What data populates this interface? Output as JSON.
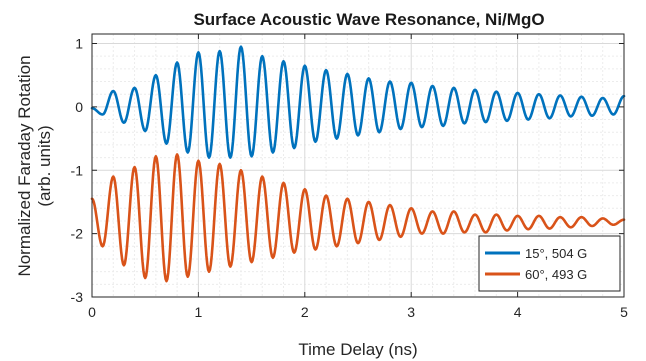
{
  "chart_data": {
    "type": "line",
    "title": "Surface Acoustic Wave Resonance, Ni/MgO",
    "xlabel": "Time Delay (ns)",
    "ylabel": [
      "Normalized Faraday Rotation",
      "(arb. units)"
    ],
    "xlim": [
      0,
      5
    ],
    "ylim": [
      -3,
      1.15
    ],
    "xticks": [
      "0",
      "1",
      "2",
      "3",
      "4",
      "5"
    ],
    "yticks": [
      "1",
      "0",
      "-1",
      "-2",
      "-3"
    ],
    "grid": true,
    "minor_grid": true,
    "legend_position": "bottom-right",
    "series": [
      {
        "name": "15°, 504 G",
        "color": "#0072BD",
        "offset": 0.0,
        "period_ns": 0.2,
        "points": [
          [
            0.0,
            -0.02
          ],
          [
            0.1,
            -0.12
          ],
          [
            0.2,
            0.25
          ],
          [
            0.3,
            -0.25
          ],
          [
            0.4,
            0.3
          ],
          [
            0.5,
            -0.38
          ],
          [
            0.6,
            0.5
          ],
          [
            0.7,
            -0.58
          ],
          [
            0.8,
            0.7
          ],
          [
            0.9,
            -0.72
          ],
          [
            1.0,
            0.86
          ],
          [
            1.1,
            -0.8
          ],
          [
            1.2,
            0.88
          ],
          [
            1.3,
            -0.8
          ],
          [
            1.4,
            0.95
          ],
          [
            1.5,
            -0.78
          ],
          [
            1.6,
            0.8
          ],
          [
            1.7,
            -0.72
          ],
          [
            1.8,
            0.72
          ],
          [
            1.9,
            -0.65
          ],
          [
            2.0,
            0.65
          ],
          [
            2.1,
            -0.55
          ],
          [
            2.2,
            0.58
          ],
          [
            2.3,
            -0.5
          ],
          [
            2.4,
            0.52
          ],
          [
            2.5,
            -0.45
          ],
          [
            2.6,
            0.45
          ],
          [
            2.7,
            -0.4
          ],
          [
            2.8,
            0.4
          ],
          [
            2.9,
            -0.35
          ],
          [
            3.0,
            0.38
          ],
          [
            3.1,
            -0.32
          ],
          [
            3.2,
            0.33
          ],
          [
            3.3,
            -0.3
          ],
          [
            3.4,
            0.3
          ],
          [
            3.5,
            -0.26
          ],
          [
            3.6,
            0.27
          ],
          [
            3.7,
            -0.24
          ],
          [
            3.8,
            0.24
          ],
          [
            3.9,
            -0.22
          ],
          [
            4.0,
            0.22
          ],
          [
            4.1,
            -0.2
          ],
          [
            4.2,
            0.2
          ],
          [
            4.3,
            -0.18
          ],
          [
            4.4,
            0.18
          ],
          [
            4.5,
            -0.15
          ],
          [
            4.6,
            0.16
          ],
          [
            4.7,
            -0.14
          ],
          [
            4.8,
            0.14
          ],
          [
            4.9,
            -0.12
          ],
          [
            5.0,
            0.17
          ]
        ]
      },
      {
        "name": "60°, 493 G",
        "color": "#D95319",
        "offset": -2.0,
        "period_ns": 0.2,
        "points": [
          [
            0.0,
            -1.45
          ],
          [
            0.1,
            -2.2
          ],
          [
            0.2,
            -1.1
          ],
          [
            0.3,
            -2.5
          ],
          [
            0.4,
            -0.95
          ],
          [
            0.5,
            -2.7
          ],
          [
            0.6,
            -0.78
          ],
          [
            0.7,
            -2.75
          ],
          [
            0.8,
            -0.75
          ],
          [
            0.9,
            -2.68
          ],
          [
            1.0,
            -0.85
          ],
          [
            1.1,
            -2.6
          ],
          [
            1.2,
            -0.9
          ],
          [
            1.3,
            -2.52
          ],
          [
            1.4,
            -1.0
          ],
          [
            1.5,
            -2.45
          ],
          [
            1.6,
            -1.1
          ],
          [
            1.7,
            -2.38
          ],
          [
            1.8,
            -1.2
          ],
          [
            1.9,
            -2.3
          ],
          [
            2.0,
            -1.3
          ],
          [
            2.1,
            -2.25
          ],
          [
            2.2,
            -1.4
          ],
          [
            2.3,
            -2.2
          ],
          [
            2.4,
            -1.45
          ],
          [
            2.5,
            -2.15
          ],
          [
            2.6,
            -1.5
          ],
          [
            2.7,
            -2.1
          ],
          [
            2.8,
            -1.55
          ],
          [
            2.9,
            -2.05
          ],
          [
            3.0,
            -1.6
          ],
          [
            3.1,
            -2.0
          ],
          [
            3.2,
            -1.65
          ],
          [
            3.3,
            -2.0
          ],
          [
            3.4,
            -1.65
          ],
          [
            3.5,
            -1.98
          ],
          [
            3.6,
            -1.7
          ],
          [
            3.7,
            -1.98
          ],
          [
            3.8,
            -1.7
          ],
          [
            3.9,
            -1.95
          ],
          [
            4.0,
            -1.72
          ],
          [
            4.1,
            -1.93
          ],
          [
            4.2,
            -1.72
          ],
          [
            4.3,
            -1.92
          ],
          [
            4.4,
            -1.74
          ],
          [
            4.5,
            -1.9
          ],
          [
            4.6,
            -1.74
          ],
          [
            4.7,
            -1.88
          ],
          [
            4.8,
            -1.76
          ],
          [
            4.9,
            -1.86
          ],
          [
            5.0,
            -1.78
          ]
        ]
      }
    ]
  }
}
